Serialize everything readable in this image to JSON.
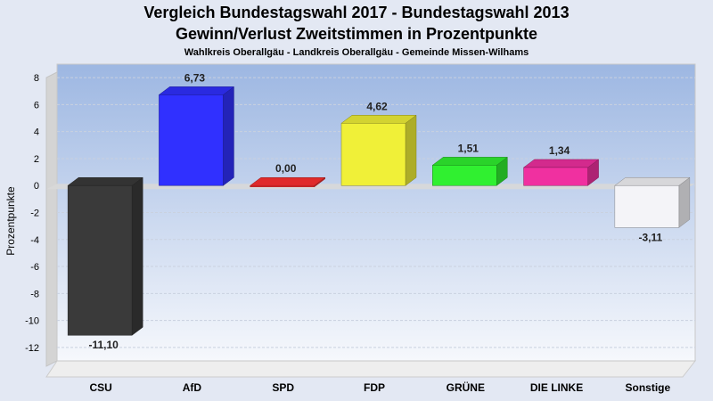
{
  "header": {
    "title": "Vergleich Bundestagswahl 2017 - Bundestagswahl 2013",
    "subtitle": "Gewinn/Verlust Zweitstimmen in Prozentpunkte",
    "subtitle2": "Wahlkreis Oberallgäu - Landkreis Oberallgäu - Gemeinde Missen-Wilhams"
  },
  "chart_data": {
    "type": "bar",
    "title": "Vergleich Bundestagswahl 2017 - Bundestagswahl 2013",
    "subtitle": "Gewinn/Verlust Zweitstimmen in Prozentpunkte",
    "xlabel": "",
    "ylabel": "Prozentpunkte",
    "categories": [
      "CSU",
      "AfD",
      "SPD",
      "FDP",
      "GRÜNE",
      "DIE LINKE",
      "Sonstige"
    ],
    "values": [
      -11.1,
      6.73,
      0.0,
      4.62,
      1.51,
      1.34,
      -3.11
    ],
    "value_labels": [
      "-11,10",
      "6,73",
      "0,00",
      "4,62",
      "1,51",
      "1,34",
      "-3,11"
    ],
    "colors": [
      "#3a3a3a",
      "#3030ff",
      "#ff3030",
      "#f0f038",
      "#30f030",
      "#f030a0",
      "#f4f4f8"
    ],
    "ylim": [
      -13,
      9
    ],
    "yticks": [
      8,
      6,
      4,
      2,
      0,
      -2,
      -4,
      -6,
      -8,
      -10,
      -12
    ],
    "ytick_labels": [
      "8",
      "6",
      "4",
      "2",
      "0",
      "-2",
      "-4",
      "-6",
      "-8",
      "-10",
      "-12"
    ],
    "grid": true,
    "legend": "none"
  }
}
